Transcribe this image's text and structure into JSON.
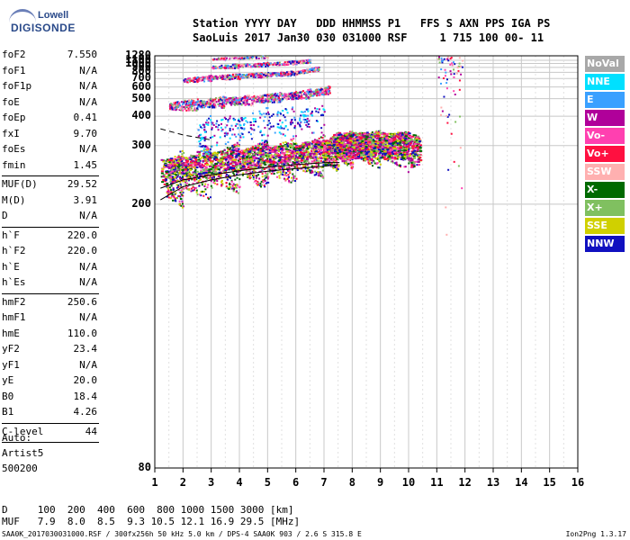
{
  "logo": {
    "line1": "Lowell",
    "line2": "DIGISONDE"
  },
  "header": {
    "line1": "Station YYYY DAY   DDD HHMMSS P1   FFS S AXN PPS IGA PS",
    "line2": "SaoLuis 2017 Jan30 030 031000 RSF     1 715 100 00- 11"
  },
  "params": [
    {
      "k": "foF2",
      "v": "7.550"
    },
    {
      "k": "foF1",
      "v": "N/A"
    },
    {
      "k": "foF1p",
      "v": "N/A"
    },
    {
      "k": "foE",
      "v": "N/A"
    },
    {
      "k": "foEp",
      "v": "0.41"
    },
    {
      "k": "fxI",
      "v": "9.70"
    },
    {
      "k": "foEs",
      "v": "N/A"
    },
    {
      "k": "fmin",
      "v": "1.45"
    },
    {
      "sep": true
    },
    {
      "k": "MUF(D)",
      "v": "29.52"
    },
    {
      "k": "M(D)",
      "v": "3.91"
    },
    {
      "k": "D",
      "v": "N/A"
    },
    {
      "sep": true
    },
    {
      "k": "h`F",
      "v": "220.0"
    },
    {
      "k": "h`F2",
      "v": "220.0"
    },
    {
      "k": "h`E",
      "v": "N/A"
    },
    {
      "k": "h`Es",
      "v": "N/A"
    },
    {
      "sep": true
    },
    {
      "k": "hmF2",
      "v": "250.6"
    },
    {
      "k": "hmF1",
      "v": "N/A"
    },
    {
      "k": "hmE",
      "v": "110.0"
    },
    {
      "k": "yF2",
      "v": "23.4"
    },
    {
      "k": "yF1",
      "v": "N/A"
    },
    {
      "k": "yE",
      "v": "20.0"
    },
    {
      "k": "B0",
      "v": "18.4"
    },
    {
      "k": "B1",
      "v": "4.26"
    },
    {
      "sep": true
    },
    {
      "k": "C-level",
      "v": "44"
    },
    {
      "sep": true
    }
  ],
  "auto": {
    "line1": "Auto:",
    "line2": "Artist5",
    "line3": "500200"
  },
  "legend": [
    {
      "label": "NoVal",
      "color": "#a8a8a8"
    },
    {
      "label": "NNE",
      "color": "#00e0ff"
    },
    {
      "label": "E",
      "color": "#3aa0ff"
    },
    {
      "label": "W",
      "color": "#b0009a"
    },
    {
      "label": "Vo-",
      "color": "#ff40b0"
    },
    {
      "label": "Vo+",
      "color": "#ff1040"
    },
    {
      "label": "SSW",
      "color": "#ffb0b0"
    },
    {
      "label": "X-",
      "color": "#006a00"
    },
    {
      "label": "X+",
      "color": "#80c060"
    },
    {
      "label": "SSE",
      "color": "#d0d000"
    },
    {
      "label": "NNW",
      "color": "#1010c0"
    }
  ],
  "bottom": {
    "d_row": "D     100  200  400  600  800 1000 1500 3000 [km]",
    "muf_row": "MUF   7.9  8.0  8.5  9.3 10.5 12.1 16.9 29.5 [MHz]"
  },
  "footer": {
    "left": "SAA0K_2017030031000.RSF / 300fx256h 50 kHz 5.0 km / DPS-4 SAA0K 903 / 2.6 S 315.8 E",
    "right": "Ion2Png 1.3.17"
  },
  "chart_data": {
    "type": "scatter",
    "title": "",
    "xlabel": "",
    "ylabel": "",
    "x_ticks": [
      1,
      2,
      3,
      4,
      5,
      6,
      7,
      8,
      9,
      10,
      11,
      12,
      13,
      14,
      15,
      16
    ],
    "xlim": [
      1,
      16
    ],
    "y_ticks": [
      80,
      200,
      300,
      400,
      500,
      600,
      700,
      800,
      900,
      1000,
      1100,
      1280
    ],
    "y_scale": "reciprocal",
    "ylim": [
      80,
      1280
    ],
    "grid": true,
    "series": [
      {
        "name": "Vo+",
        "points": [
          [
            1.4,
            235
          ],
          [
            2,
            245
          ],
          [
            3,
            255
          ],
          [
            4,
            262
          ],
          [
            5,
            268
          ],
          [
            6,
            275
          ],
          [
            7,
            285
          ],
          [
            7.5,
            295
          ],
          [
            8,
            300
          ],
          [
            9,
            300
          ],
          [
            10,
            295
          ]
        ]
      },
      {
        "name": "Vo-",
        "points": [
          [
            1.5,
            455
          ],
          [
            2.5,
            470
          ],
          [
            3.5,
            485
          ],
          [
            4.5,
            500
          ],
          [
            5.5,
            520
          ],
          [
            6.5,
            545
          ],
          [
            7.2,
            580
          ]
        ]
      },
      {
        "name": "NNW",
        "points": [
          [
            2.5,
            330
          ],
          [
            3,
            340
          ],
          [
            4,
            360
          ],
          [
            5,
            380
          ],
          [
            6,
            390
          ],
          [
            7,
            395
          ]
        ]
      },
      {
        "name": "X+",
        "points": [
          [
            2,
            680
          ],
          [
            3,
            720
          ],
          [
            4,
            745
          ],
          [
            5,
            770
          ],
          [
            6,
            800
          ],
          [
            6.8,
            890
          ]
        ]
      },
      {
        "name": "SSW",
        "points": [
          [
            3,
            920
          ],
          [
            4,
            960
          ],
          [
            5,
            1000
          ],
          [
            6,
            1050
          ],
          [
            6.5,
            1100
          ]
        ]
      },
      {
        "name": "E",
        "points": [
          [
            3,
            1170
          ],
          [
            4,
            1210
          ],
          [
            5,
            1260
          ]
        ]
      }
    ]
  }
}
